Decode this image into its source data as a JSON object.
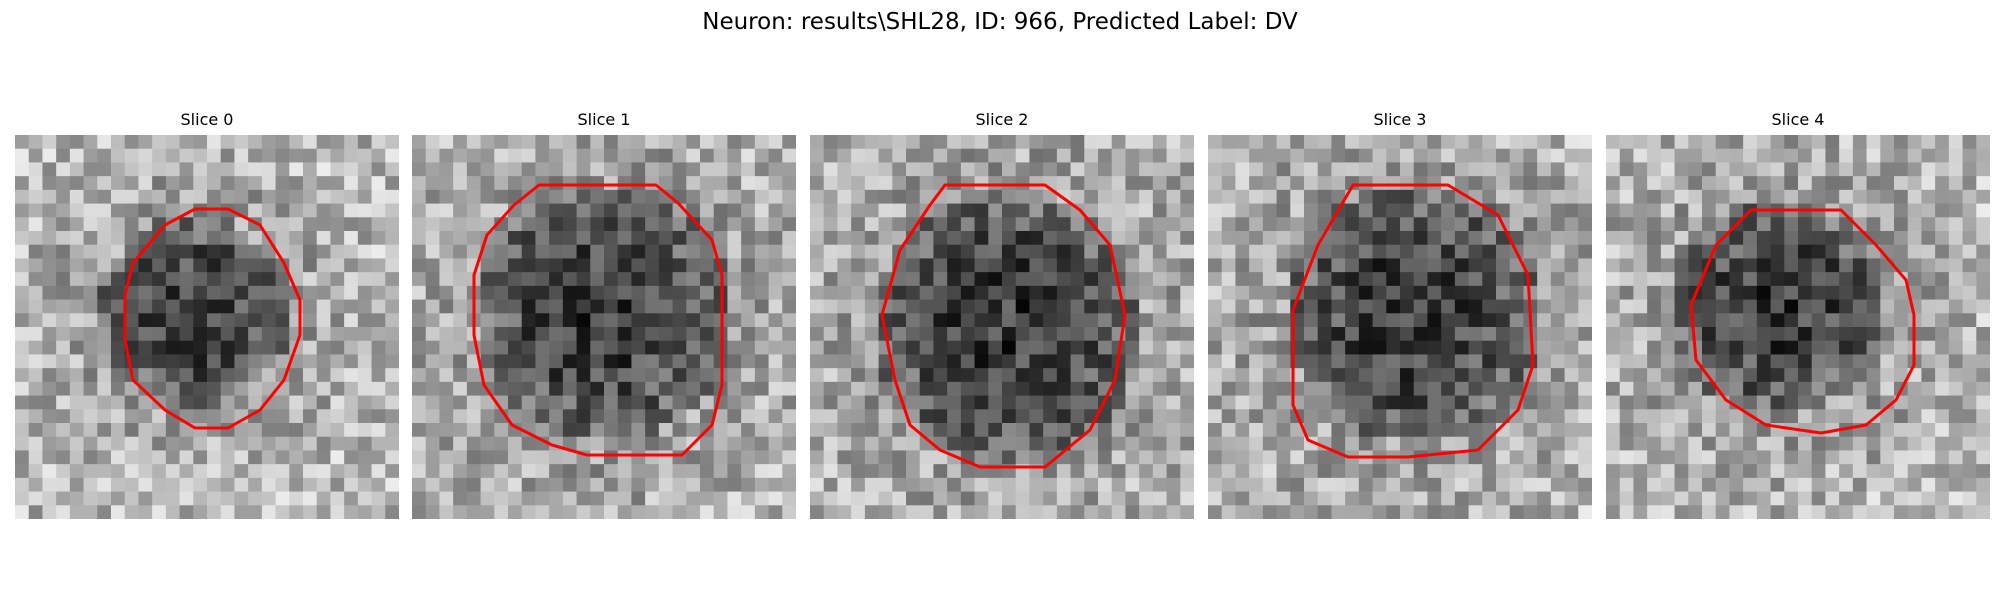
{
  "figure": {
    "title": "Neuron: results\\SHL28, ID: 966, Predicted Label: DV"
  },
  "slices": [
    {
      "title": "Slice 0",
      "contour_color": "#ff0000"
    },
    {
      "title": "Slice 1",
      "contour_color": "#ff0000"
    },
    {
      "title": "Slice 2",
      "contour_color": "#ff0000"
    },
    {
      "title": "Slice 3",
      "contour_color": "#ff0000"
    },
    {
      "title": "Slice 4",
      "contour_color": "#ff0000"
    }
  ]
}
